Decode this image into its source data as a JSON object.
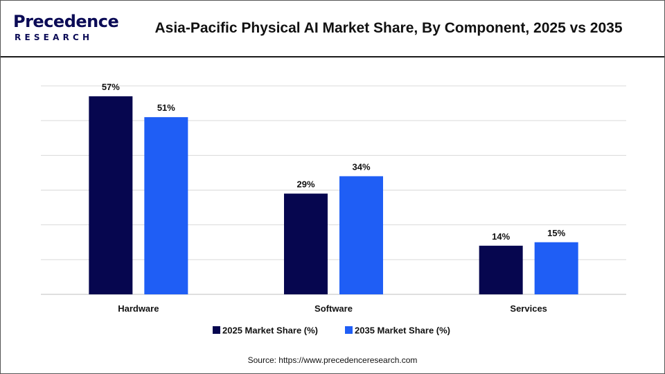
{
  "logo": {
    "main": "Precedence",
    "sub": "RESEARCH"
  },
  "colors": {
    "series1": "#06064f",
    "series2": "#1f5ef5",
    "grid": "#d9d9d9",
    "text": "#111111"
  },
  "chart_data": {
    "type": "bar",
    "title": "Asia-Pacific Physical AI Market Share, By Component, 2025 vs 2035",
    "categories": [
      "Hardware",
      "Software",
      "Services"
    ],
    "series": [
      {
        "name": "2025 Market Share (%)",
        "values": [
          57,
          29,
          14
        ],
        "labels": [
          "57%",
          "29%",
          "14%"
        ]
      },
      {
        "name": "2035 Market Share (%)",
        "values": [
          51,
          34,
          15
        ],
        "labels": [
          "51%",
          "34%",
          "15%"
        ]
      }
    ],
    "ylim": [
      0,
      60
    ],
    "grid": true,
    "legend": "bottom-center"
  },
  "source": "Source: https://www.precedenceresearch.com"
}
